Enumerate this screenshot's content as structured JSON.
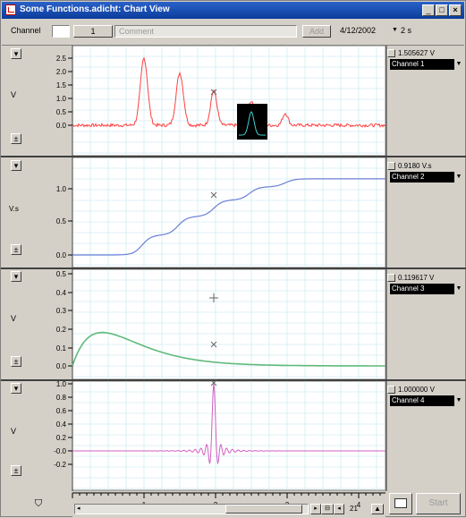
{
  "window": {
    "title": "Some Functions.adicht: Chart View"
  },
  "toolbar": {
    "channel_label": "Channel",
    "channel_value": "1",
    "comment_placeholder": "Comment",
    "add_label": "Add",
    "date": "4/12/2002",
    "time_unit": "2 s"
  },
  "channels": [
    {
      "name": "Channel 1",
      "value": "1.505627 V",
      "unit": "V",
      "ticks": [
        "2.5",
        "2.0",
        "1.5",
        "1.0",
        "0.5",
        "0.0"
      ]
    },
    {
      "name": "Channel 2",
      "value": "0.9180 V.s",
      "unit": "V.s",
      "ticks": [
        "1.0",
        "0.5",
        "0.0"
      ]
    },
    {
      "name": "Channel 3",
      "value": "0.119617 V",
      "unit": "V",
      "ticks": [
        "0.5",
        "0.4",
        "0.3",
        "0.2",
        "0.1",
        "0.0"
      ]
    },
    {
      "name": "Channel 4",
      "value": "1.000000 V",
      "unit": "V",
      "ticks": [
        "1.0",
        "0.8",
        "0.6",
        "0.4",
        "0.2",
        "-0.0",
        "-0.2"
      ]
    }
  ],
  "time_axis": {
    "ticks": [
      "1",
      "2",
      "3",
      "4"
    ]
  },
  "colors": {
    "ch1": "#ff4040",
    "ch2": "#6b7fd8",
    "ch3": "#5fba7a",
    "ch4": "#d060c0",
    "grid": "#bfe6ef"
  },
  "footer": {
    "page_value": "21",
    "start_label": "Start"
  }
}
